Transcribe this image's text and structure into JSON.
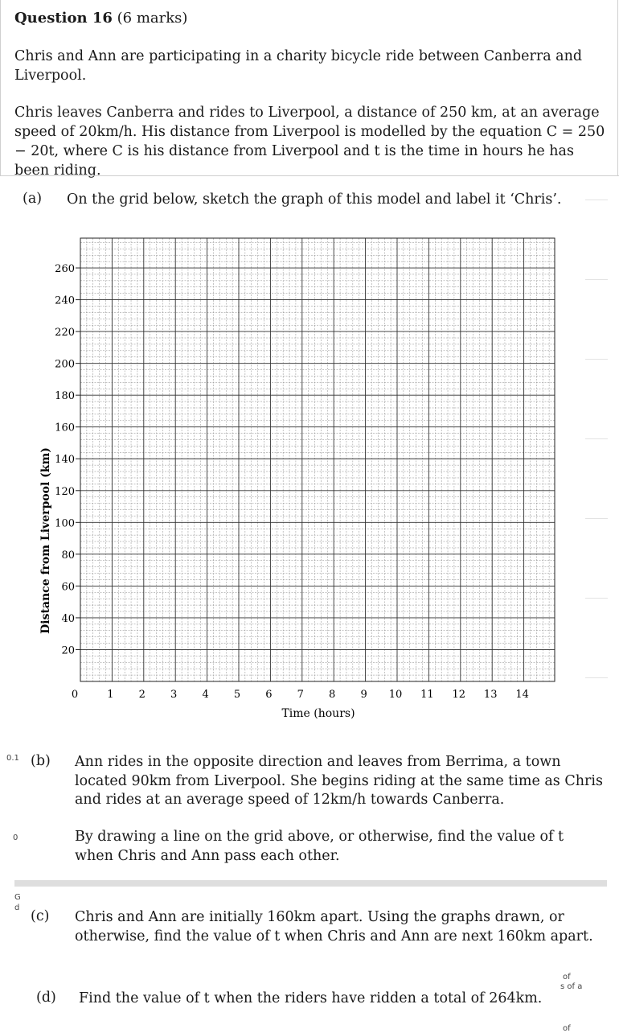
{
  "question": {
    "title": "Question 16",
    "marks": "(6 marks)",
    "intro_1": "Chris and Ann are participating in a charity bicycle ride between Canberra and Liverpool.",
    "intro_2": "Chris leaves Canberra and rides to Liverpool, a distance of 250 km, at an average speed of 20km/h. His distance from Liverpool is modelled by the equation C = 250 − 20t, where C is his distance from Liverpool and t is the time in hours he has been riding."
  },
  "parts": [
    {
      "letter": "(a)",
      "text": "On the grid below, sketch the graph of this model and label it ‘Chris’."
    },
    {
      "letter": "(b)",
      "text": "Ann rides in the opposite direction and leaves from Berrima, a town located 90km from Liverpool. She begins riding at the same time as Chris and rides at an average speed of 12km/h towards Canberra.",
      "text2": "By drawing a line on the grid above, or otherwise, find the value of t when Chris and Ann pass each other."
    },
    {
      "letter": "(c)",
      "text": "Chris and Ann are initially 160km apart. Using the graphs drawn, or otherwise, find the value of t when Chris and Ann are next 160km apart."
    },
    {
      "letter": "(d)",
      "text": "Find the value of t when the riders have ridden a total of 264km."
    }
  ],
  "margin_notes": {
    "b_top": "0.1",
    "b_bottom": "0",
    "c_g": "G",
    "c_d": "d",
    "right_of": "of",
    "right_sofa": "s of a",
    "right_of2": "of"
  },
  "chart_data": {
    "type": "line",
    "title": "",
    "xlabel": "Time (hours)",
    "ylabel": "Distance from Liverpool (km)",
    "xlim": [
      0,
      15
    ],
    "ylim": [
      0,
      270
    ],
    "x_ticks": [
      "0",
      "1",
      "2",
      "3",
      "4",
      "5",
      "6",
      "7",
      "8",
      "9",
      "10",
      "11",
      "12",
      "13",
      "14"
    ],
    "y_ticks": [
      "20",
      "40",
      "60",
      "80",
      "100",
      "120",
      "140",
      "160",
      "180",
      "200",
      "220",
      "240",
      "260"
    ],
    "series": [],
    "grid": true
  }
}
